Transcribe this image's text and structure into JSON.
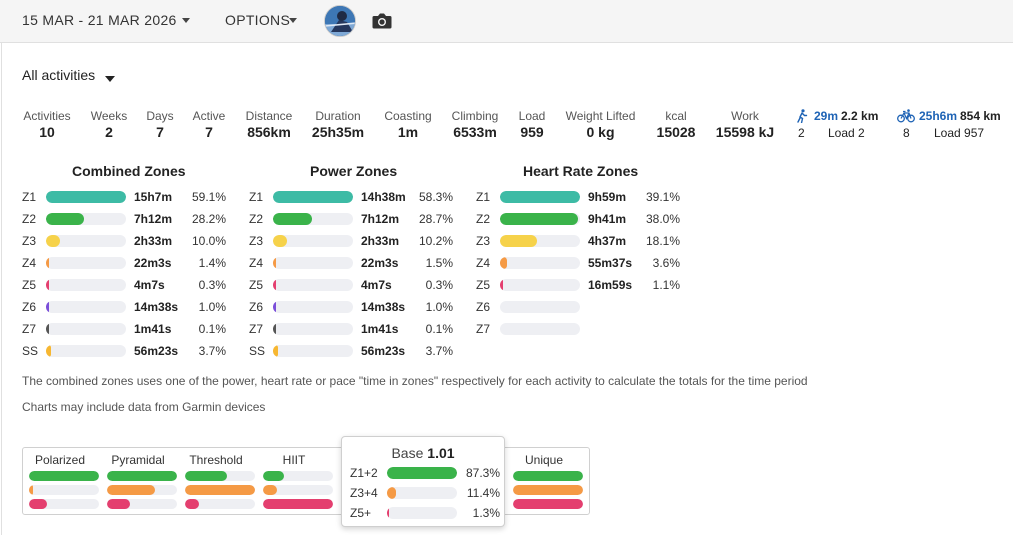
{
  "header": {
    "date_range": "15 MAR - 21 MAR 2026",
    "options_label": "OPTIONS",
    "avatar_icon": "user-avatar",
    "camera_icon": "camera-icon"
  },
  "filter": {
    "label": "All activities"
  },
  "stats": [
    {
      "label": "Activities",
      "value": "10"
    },
    {
      "label": "Weeks",
      "value": "2"
    },
    {
      "label": "Days",
      "value": "7"
    },
    {
      "label": "Active",
      "value": "7"
    },
    {
      "label": "Distance",
      "value": "856km"
    },
    {
      "label": "Duration",
      "value": "25h35m"
    },
    {
      "label": "Coasting",
      "value": "1m"
    },
    {
      "label": "Climbing",
      "value": "6533m"
    },
    {
      "label": "Load",
      "value": "959"
    },
    {
      "label": "Weight Lifted",
      "value": "0 kg"
    },
    {
      "label": "kcal",
      "value": "15028"
    },
    {
      "label": "Work",
      "value": "15598 kJ"
    }
  ],
  "sports": [
    {
      "icon": "walk-icon",
      "time": "29m",
      "distance": "2.2 km",
      "count": "2",
      "load": "Load 2"
    },
    {
      "icon": "bike-icon",
      "time": "25h6m",
      "distance": "854 km",
      "count": "8",
      "load": "Load 957"
    }
  ],
  "zone_panels": [
    {
      "title": "Combined Zones",
      "rows": [
        {
          "zone": "Z1",
          "time": "15h7m",
          "pct": "59.1%",
          "frac": 0.591
        },
        {
          "zone": "Z2",
          "time": "7h12m",
          "pct": "28.2%",
          "frac": 0.282
        },
        {
          "zone": "Z3",
          "time": "2h33m",
          "pct": "10.0%",
          "frac": 0.1
        },
        {
          "zone": "Z4",
          "time": "22m3s",
          "pct": "1.4%",
          "frac": 0.014
        },
        {
          "zone": "Z5",
          "time": "4m7s",
          "pct": "0.3%",
          "frac": 0.003
        },
        {
          "zone": "Z6",
          "time": "14m38s",
          "pct": "1.0%",
          "frac": 0.01
        },
        {
          "zone": "Z7",
          "time": "1m41s",
          "pct": "0.1%",
          "frac": 0.001
        },
        {
          "zone": "SS",
          "time": "56m23s",
          "pct": "3.7%",
          "frac": 0.037
        }
      ]
    },
    {
      "title": "Power Zones",
      "rows": [
        {
          "zone": "Z1",
          "time": "14h38m",
          "pct": "58.3%",
          "frac": 0.583
        },
        {
          "zone": "Z2",
          "time": "7h12m",
          "pct": "28.7%",
          "frac": 0.287
        },
        {
          "zone": "Z3",
          "time": "2h33m",
          "pct": "10.2%",
          "frac": 0.102
        },
        {
          "zone": "Z4",
          "time": "22m3s",
          "pct": "1.5%",
          "frac": 0.015
        },
        {
          "zone": "Z5",
          "time": "4m7s",
          "pct": "0.3%",
          "frac": 0.003
        },
        {
          "zone": "Z6",
          "time": "14m38s",
          "pct": "1.0%",
          "frac": 0.01
        },
        {
          "zone": "Z7",
          "time": "1m41s",
          "pct": "0.1%",
          "frac": 0.001
        },
        {
          "zone": "SS",
          "time": "56m23s",
          "pct": "3.7%",
          "frac": 0.037
        }
      ]
    },
    {
      "title": "Heart Rate Zones",
      "rows": [
        {
          "zone": "Z1",
          "time": "9h59m",
          "pct": "39.1%",
          "frac": 0.391
        },
        {
          "zone": "Z2",
          "time": "9h41m",
          "pct": "38.0%",
          "frac": 0.38
        },
        {
          "zone": "Z3",
          "time": "4h37m",
          "pct": "18.1%",
          "frac": 0.181
        },
        {
          "zone": "Z4",
          "time": "55m37s",
          "pct": "3.6%",
          "frac": 0.036
        },
        {
          "zone": "Z5",
          "time": "16m59s",
          "pct": "1.1%",
          "frac": 0.011
        },
        {
          "zone": "Z6",
          "time": "",
          "pct": "",
          "frac": 0
        },
        {
          "zone": "Z7",
          "time": "",
          "pct": "",
          "frac": 0
        }
      ]
    }
  ],
  "zone_colors": {
    "Z1": "#3dbba5",
    "Z2": "#3ab34a",
    "Z3": "#f6d24a",
    "Z4": "#f59a45",
    "Z5": "#e43f6f",
    "Z6": "#7b4fd9",
    "Z7": "#555555",
    "SS": "#f7b731"
  },
  "notes": [
    "The combined zones uses one of the power, heart rate or pace \"time in zones\" respectively for each activity to calculate the totals for the time period",
    "Charts may include data from Garmin devices"
  ],
  "distribution": {
    "columns": [
      {
        "name": "Polarized",
        "bars": [
          {
            "frac": 1.0,
            "color": "#3ab34a"
          },
          {
            "frac": 0.06,
            "color": "#f59a45"
          },
          {
            "frac": 0.25,
            "color": "#e43f6f"
          }
        ]
      },
      {
        "name": "Pyramidal",
        "bars": [
          {
            "frac": 1.0,
            "color": "#3ab34a"
          },
          {
            "frac": 0.68,
            "color": "#f59a45"
          },
          {
            "frac": 0.33,
            "color": "#e43f6f"
          }
        ]
      },
      {
        "name": "Threshold",
        "bars": [
          {
            "frac": 0.6,
            "color": "#3ab34a"
          },
          {
            "frac": 1.0,
            "color": "#f59a45"
          },
          {
            "frac": 0.2,
            "color": "#e43f6f"
          }
        ]
      },
      {
        "name": "HIIT",
        "bars": [
          {
            "frac": 0.3,
            "color": "#3ab34a"
          },
          {
            "frac": 0.2,
            "color": "#f59a45"
          },
          {
            "frac": 1.0,
            "color": "#e43f6f"
          }
        ]
      },
      {
        "name": "Unique",
        "bars": [
          {
            "frac": 1.0,
            "color": "#3ab34a"
          },
          {
            "frac": 1.0,
            "color": "#f59a45"
          },
          {
            "frac": 1.0,
            "color": "#e43f6f"
          }
        ]
      }
    ],
    "tooltip": {
      "title_prefix": "Base",
      "title_value": "1.01",
      "rows": [
        {
          "label": "Z1+2",
          "pct": "87.3%",
          "frac": 0.873,
          "color": "#3ab34a"
        },
        {
          "label": "Z3+4",
          "pct": "11.4%",
          "frac": 0.114,
          "color": "#f59a45"
        },
        {
          "label": "Z5+",
          "pct": "1.3%",
          "frac": 0.013,
          "color": "#e43f6f"
        }
      ]
    }
  }
}
